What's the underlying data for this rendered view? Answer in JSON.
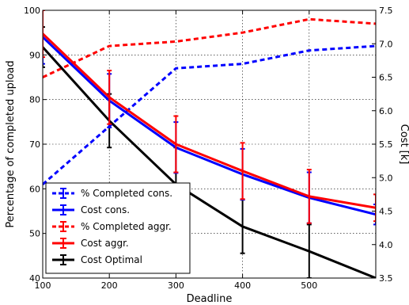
{
  "chart_data": {
    "type": "line",
    "title": "",
    "xlabel": "Deadline",
    "ylabel_left": "Percentage of completed upload",
    "ylabel_right": "Cost [k]",
    "x": [
      100,
      200,
      300,
      400,
      500,
      600
    ],
    "xlim": [
      100,
      600
    ],
    "ylim_left": [
      40,
      100
    ],
    "ylim_right": [
      3.5,
      7.5
    ],
    "xticks": [
      100,
      200,
      300,
      400,
      500
    ],
    "yticks_left": [
      40,
      50,
      60,
      70,
      80,
      90,
      100
    ],
    "yticks_right": [
      "3.5",
      "4.0",
      "4.5",
      "5.0",
      "5.5",
      "6.0",
      "6.5",
      "7.0",
      "7.5"
    ],
    "grid": true,
    "legend_position": "bottom-left",
    "series": [
      {
        "name": "% Completed cons.",
        "axis": "left",
        "style": "dashed",
        "color": "#0000ff",
        "values": [
          61,
          74,
          87,
          88,
          91,
          92
        ]
      },
      {
        "name": "Cost cons.",
        "axis": "right",
        "style": "solid",
        "color": "#0000ff",
        "values": [
          7.1,
          6.15,
          5.45,
          5.05,
          4.7,
          4.45
        ],
        "errors": [
          0.4,
          0.4,
          0.38,
          0.38,
          0.38,
          0.15
        ]
      },
      {
        "name": "% Completed aggr.",
        "axis": "left",
        "style": "dashed",
        "color": "#ff0000",
        "values": [
          85,
          92,
          93,
          95,
          98,
          97
        ]
      },
      {
        "name": "Cost aggr.",
        "axis": "right",
        "style": "solid",
        "color": "#ff0000",
        "values": [
          7.15,
          6.2,
          5.5,
          5.1,
          4.72,
          4.55
        ],
        "errors": [
          0.35,
          0.4,
          0.42,
          0.42,
          0.4,
          0.2
        ]
      },
      {
        "name": "Cost Optimal",
        "axis": "right",
        "style": "solid",
        "color": "#000000",
        "values": [
          6.95,
          5.85,
          4.9,
          4.27,
          3.9,
          3.5
        ],
        "errors": [
          0.3,
          0.4,
          0.55,
          0.4,
          0.4,
          0
        ]
      }
    ]
  }
}
